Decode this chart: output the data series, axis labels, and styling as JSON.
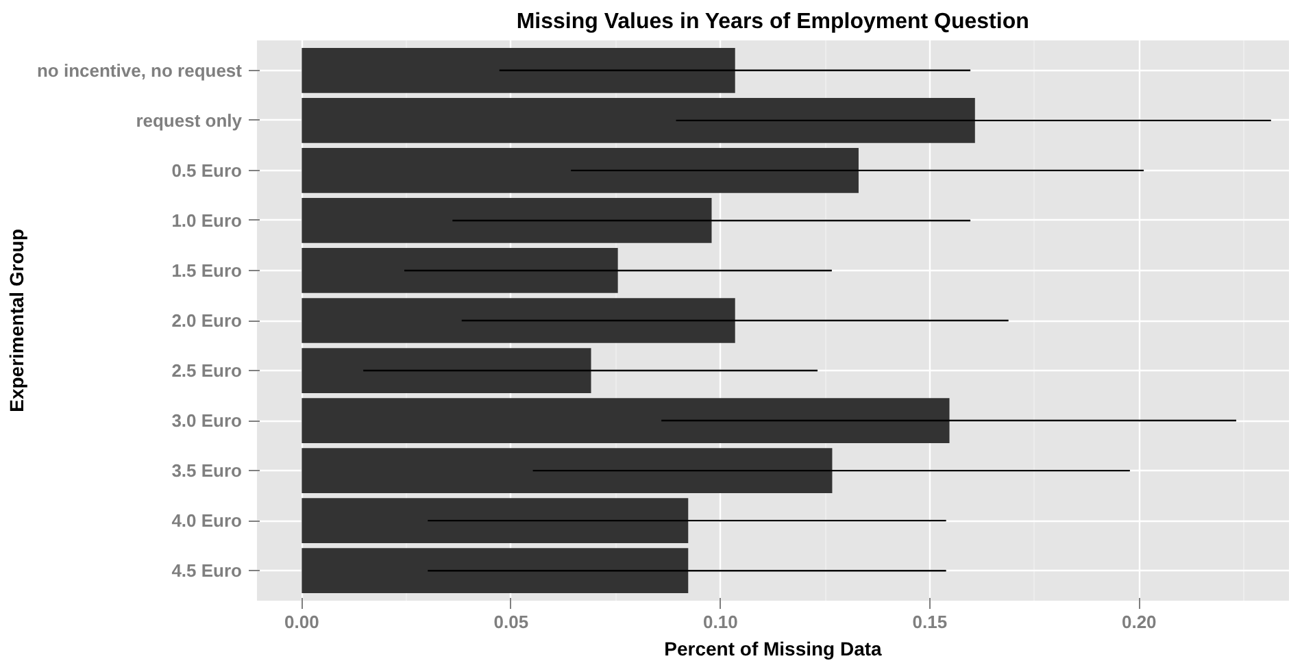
{
  "chart_data": {
    "type": "bar",
    "orientation": "horizontal",
    "title": "Missing Values in Years of Employment Question",
    "xlabel": "Percent of Missing Data",
    "ylabel": "Experimental Group",
    "categories": [
      "no incentive, no request",
      "request only",
      "0.5 Euro",
      "1.0 Euro",
      "1.5 Euro",
      "2.0 Euro",
      "2.5 Euro",
      "3.0 Euro",
      "3.5 Euro",
      "4.0 Euro",
      "4.5 Euro"
    ],
    "values": [
      0.1035,
      0.1608,
      0.133,
      0.0979,
      0.0755,
      0.1035,
      0.0691,
      0.1547,
      0.1267,
      0.0923,
      0.0923
    ],
    "errors": [
      [
        0.0472,
        0.1597
      ],
      [
        0.0894,
        0.2315
      ],
      [
        0.0643,
        0.2011
      ],
      [
        0.036,
        0.1597
      ],
      [
        0.0245,
        0.1266
      ],
      [
        0.0382,
        0.1688
      ],
      [
        0.0147,
        0.1232
      ],
      [
        0.0859,
        0.2232
      ],
      [
        0.0552,
        0.1978
      ],
      [
        0.0301,
        0.1539
      ],
      [
        0.0301,
        0.1539
      ]
    ],
    "color": "#333333",
    "xlim": [
      -0.0107,
      0.2358
    ],
    "xticks": [
      {
        "value": 0,
        "label": "0.00"
      },
      {
        "value": 0.05,
        "label": "0.05"
      },
      {
        "value": 0.1,
        "label": "0.10"
      },
      {
        "value": 0.15,
        "label": "0.15"
      },
      {
        "value": 0.2,
        "label": "0.20"
      }
    ],
    "grid": true
  }
}
